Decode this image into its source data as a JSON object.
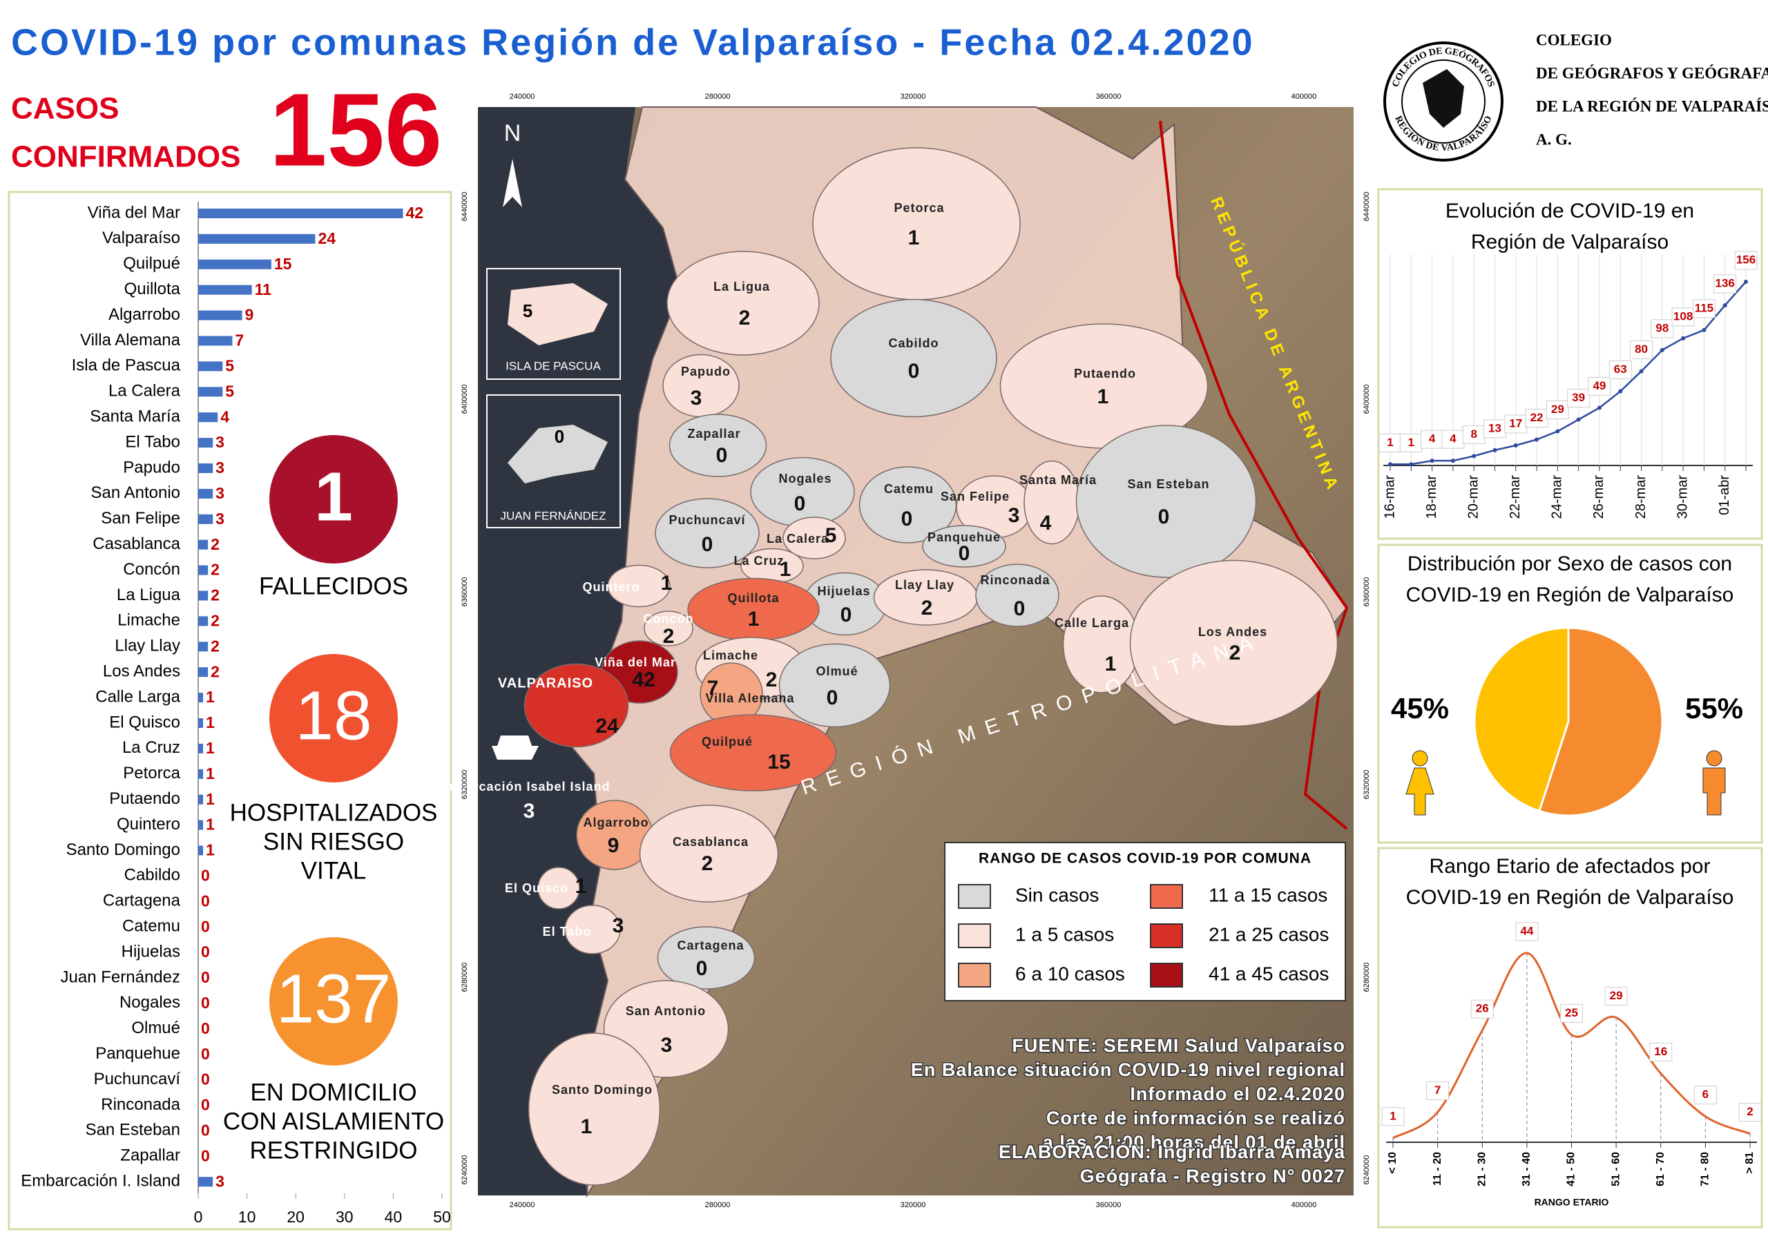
{
  "header": {
    "title": "COVID-19 por comunas Región de Valparaíso - Fecha 02.4.2020",
    "confirmed_label": [
      "CASOS",
      "CONFIRMADOS"
    ],
    "confirmed": 156
  },
  "logo": {
    "ring_top": "COLEGIO DE GEÓGRAFOS",
    "ring_bottom": "REGIÓN DE VALPARAÍSO",
    "lines": [
      "COLEGIO",
      "DE GEÓGRAFOS Y GEÓGRAFAS",
      "DE LA REGIÓN DE VALPARAÍSO",
      "A. G."
    ]
  },
  "stats": [
    {
      "value": 1,
      "lines": [
        "FALLECIDOS"
      ],
      "color": "#a8102c"
    },
    {
      "value": 18,
      "lines": [
        "HOSPITALIZADOS",
        "SIN RIESGO",
        "VITAL"
      ],
      "color": "#f0512f"
    },
    {
      "value": 137,
      "lines": [
        "EN DOMICILIO",
        "CON AISLAMIENTO",
        "RESTRINGIDO"
      ],
      "color": "#f7932f"
    }
  ],
  "chart_data": [
    {
      "type": "hbar",
      "color": "#4472c4",
      "label_color": "#c00000",
      "categories": [
        "Viña del Mar",
        "Valparaíso",
        "Quilpué",
        "Quillota",
        "Algarrobo",
        "Villa Alemana",
        "Isla de Pascua",
        "La Calera",
        "Santa María",
        "El Tabo",
        "Papudo",
        "San Antonio",
        "San Felipe",
        "Casablanca",
        "Concón",
        "La Ligua",
        "Limache",
        "Llay Llay",
        "Los Andes",
        "Calle Larga",
        "El Quisco",
        "La Cruz",
        "Petorca",
        "Putaendo",
        "Quintero",
        "Santo Domingo",
        "Cabildo",
        "Cartagena",
        "Catemu",
        "Hijuelas",
        "Juan Fernández",
        "Nogales",
        "Olmué",
        "Panquehue",
        "Puchuncaví",
        "Rinconada",
        "San Esteban",
        "Zapallar",
        "Embarcación I. Island"
      ],
      "values": [
        42,
        24,
        15,
        11,
        9,
        7,
        5,
        5,
        4,
        3,
        3,
        3,
        3,
        2,
        2,
        2,
        2,
        2,
        2,
        1,
        1,
        1,
        1,
        1,
        1,
        1,
        0,
        0,
        0,
        0,
        0,
        0,
        0,
        0,
        0,
        0,
        0,
        0,
        3
      ],
      "xlim": [
        0,
        50
      ],
      "xticks": [
        0,
        10,
        20,
        30,
        40,
        50
      ]
    },
    {
      "type": "line",
      "title": [
        "Evolución de COVID-19 en",
        "Región de Valparaíso"
      ],
      "color": "#2f4a9e",
      "label_color": "#c00000",
      "categories": [
        "16-mar",
        null,
        "18-mar",
        null,
        "20-mar",
        null,
        "22-mar",
        null,
        "24-mar",
        null,
        "26-mar",
        null,
        "28-mar",
        null,
        "30-mar",
        null,
        "01-abr",
        null
      ],
      "values": [
        1,
        1,
        4,
        4,
        8,
        13,
        17,
        22,
        29,
        39,
        49,
        63,
        80,
        98,
        108,
        115,
        136,
        156
      ]
    },
    {
      "type": "pie",
      "title": [
        "Distribución por Sexo de casos con",
        "COVID-19 en Región de Valparaíso"
      ],
      "values": [
        45,
        55
      ],
      "value_labels": [
        "45%",
        "55%"
      ],
      "colors": [
        "#ffc000",
        "#f58a2e"
      ]
    },
    {
      "type": "line",
      "smooth": true,
      "title": [
        "Rango Etario de afectados por",
        "COVID-19 en Región de Valparaíso"
      ],
      "color": "#e0622a",
      "label_color": "#c00000",
      "x_label": "RANGO ETARIO",
      "categories": [
        "< 10",
        "11 - 20",
        "21 - 30",
        "31 - 40",
        "41 - 50",
        "51 - 60",
        "61 - 70",
        "71 - 80",
        "> 81"
      ],
      "values": [
        1,
        7,
        26,
        44,
        25,
        29,
        16,
        6,
        2
      ]
    }
  ],
  "map": {
    "north": "N",
    "insets": [
      "ISLA DE PASCUA",
      "JUAN FERNÁNDEZ"
    ],
    "communes": [
      {
        "name": "Petorca",
        "color": "#f9e1d9"
      },
      {
        "name": "La Ligua",
        "color": "#f9e1d9"
      },
      {
        "name": "Cabildo",
        "color": "#d9d9d9"
      },
      {
        "name": "Putaendo",
        "color": "#f9e1d9"
      },
      {
        "name": "Papudo",
        "color": "#f9e1d9"
      },
      {
        "name": "Zapallar",
        "color": "#d9d9d9"
      },
      {
        "name": "Nogales",
        "color": "#d9d9d9"
      },
      {
        "name": "Catemu",
        "color": "#d9d9d9"
      },
      {
        "name": "San Felipe",
        "color": "#f9e1d9"
      },
      {
        "name": "Santa María",
        "color": "#f9e1d9"
      },
      {
        "name": "San Esteban",
        "color": "#d9d9d9"
      },
      {
        "name": "Panquehue",
        "color": "#d9d9d9"
      },
      {
        "name": "La Calera",
        "color": "#f9e1d9"
      },
      {
        "name": "Puchuncaví",
        "color": "#d9d9d9"
      },
      {
        "name": "La Cruz",
        "color": "#f9e1d9"
      },
      {
        "name": "Quintero",
        "color": "#f9e1d9"
      },
      {
        "name": "Hijuelas",
        "color": "#d9d9d9"
      },
      {
        "name": "Llay Llay",
        "color": "#f9e1d9"
      },
      {
        "name": "Rinconada",
        "color": "#d9d9d9"
      },
      {
        "name": "Quillota",
        "color": "#ef6a4c"
      },
      {
        "name": "Calle Larga",
        "color": "#f9e1d9"
      },
      {
        "name": "Los Andes",
        "color": "#f9e1d9"
      },
      {
        "name": "Concón",
        "color": "#f9e1d9"
      },
      {
        "name": "Limache",
        "color": "#f9e1d9"
      },
      {
        "name": "Olmué",
        "color": "#d9d9d9"
      },
      {
        "name": "Viña del Mar",
        "color": "#a50f15"
      },
      {
        "name": "Villa Alemana",
        "color": "#f4a582"
      },
      {
        "name": "VALPARAISO",
        "color": "#d73027"
      },
      {
        "name": "Quilpué",
        "color": "#ef6a4c"
      },
      {
        "name": "Embarcación Isabel Island",
        "color": null
      },
      {
        "name": "Algarrobo",
        "color": "#f4a582"
      },
      {
        "name": "Casablanca",
        "color": "#f9e1d9"
      },
      {
        "name": "El Quisco",
        "color": "#f9e1d9"
      },
      {
        "name": "El Tabo",
        "color": "#f9e1d9"
      },
      {
        "name": "Cartagena",
        "color": "#d9d9d9"
      },
      {
        "name": "San Antonio",
        "color": "#f9e1d9"
      },
      {
        "name": "Santo Domingo",
        "color": "#f9e1d9"
      }
    ],
    "legend_title": "RANGO DE CASOS COVID-19 POR COMUNA",
    "legend": [
      {
        "label": "Sin casos",
        "color": "#d9d9d9"
      },
      {
        "label": "1 a 5 casos",
        "color": "#fbe3dc"
      },
      {
        "label": "6 a 10 casos",
        "color": "#f4a582"
      },
      {
        "label": "11 a 15 casos",
        "color": "#ef6a4c"
      },
      {
        "label": "21 a 25 casos",
        "color": "#d73027"
      },
      {
        "label": "41 a 45 casos",
        "color": "#a50f15"
      }
    ],
    "country_label": "REPÚBLICA DE ARGENTINA",
    "region_label": "REGIÓN METROPOLITANA",
    "xticks": [
      240000,
      280000,
      320000,
      360000,
      400000
    ],
    "yticks": [
      6440000,
      6400000,
      6360000,
      6320000,
      6280000,
      6240000
    ]
  },
  "source": {
    "lines": [
      "FUENTE: SEREMI Salud Valparaíso",
      "En Balance situación COVID-19 nivel regional",
      "Informado el 02.4.2020",
      "Corte de información se realizó",
      "a las 21:00 horas del 01 de abril"
    ],
    "credits": [
      "ELABORACIÓN: Ingrid Ibarra Amaya",
      "Geógrafa - Registro N° 0027"
    ]
  }
}
